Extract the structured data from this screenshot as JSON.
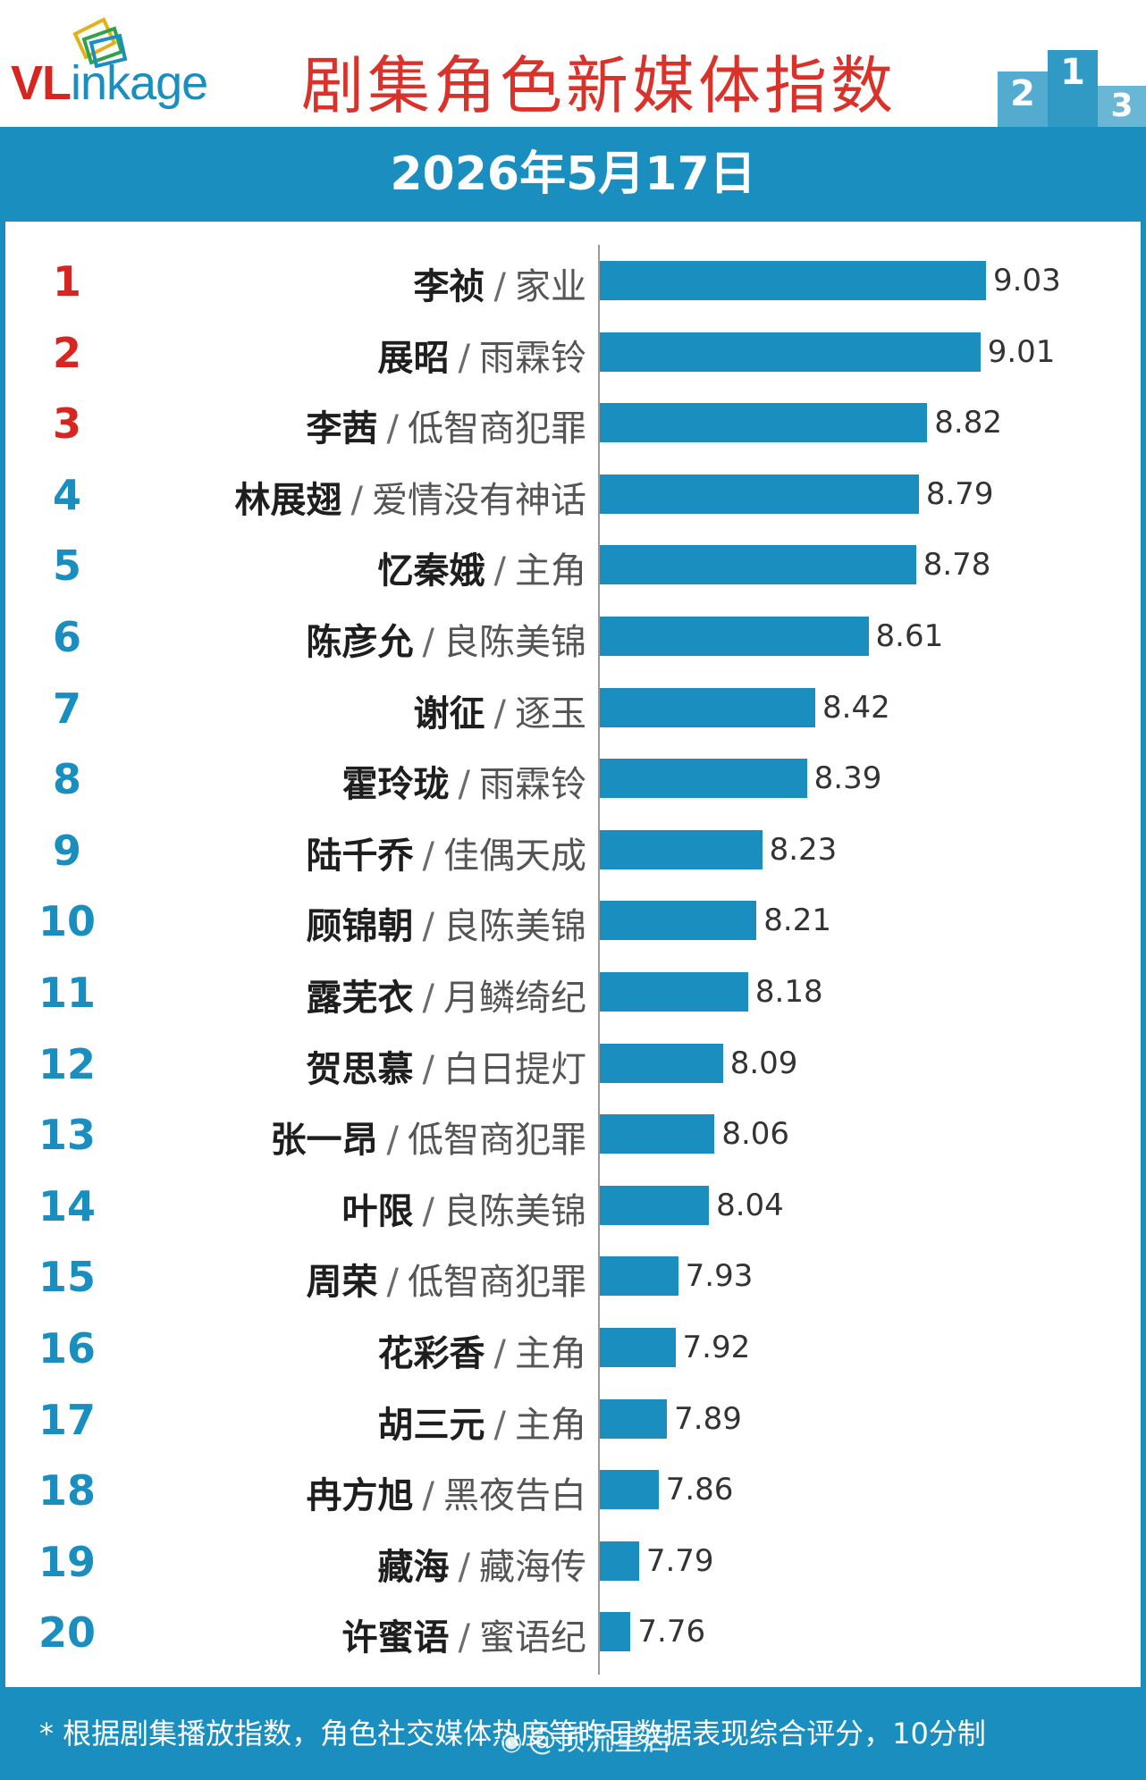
{
  "brand": {
    "logo_text_v": "VL",
    "logo_text_rest": "inkage"
  },
  "header": {
    "title": "剧集角色新媒体指数",
    "podium_icon": "podium-icon"
  },
  "date": "2026年5月17日",
  "colors": {
    "bar": "#1a8fbf",
    "rank_top3": "#d7251f",
    "rank_other": "#1a8fbf",
    "title": "#d9322a"
  },
  "chart_data": {
    "type": "bar",
    "orientation": "horizontal",
    "title": "剧集角色新媒体指数",
    "categories": [
      {
        "rank": "1",
        "name": "李祯",
        "show": "家业"
      },
      {
        "rank": "2",
        "name": "展昭",
        "show": "雨霖铃"
      },
      {
        "rank": "3",
        "name": "李茜",
        "show": "低智商犯罪"
      },
      {
        "rank": "4",
        "name": "林展翅",
        "show": "爱情没有神话"
      },
      {
        "rank": "5",
        "name": "忆秦娥",
        "show": "主角"
      },
      {
        "rank": "6",
        "name": "陈彦允",
        "show": "良陈美锦"
      },
      {
        "rank": "7",
        "name": "谢征",
        "show": "逐玉"
      },
      {
        "rank": "8",
        "name": "霍玲珑",
        "show": "雨霖铃"
      },
      {
        "rank": "9",
        "name": "陆千乔",
        "show": "佳偶天成"
      },
      {
        "rank": "10",
        "name": "顾锦朝",
        "show": "良陈美锦"
      },
      {
        "rank": "11",
        "name": "露芜衣",
        "show": "月鳞绮纪"
      },
      {
        "rank": "12",
        "name": "贺思慕",
        "show": "白日提灯"
      },
      {
        "rank": "13",
        "name": "张一昂",
        "show": "低智商犯罪"
      },
      {
        "rank": "14",
        "name": "叶限",
        "show": "良陈美锦"
      },
      {
        "rank": "15",
        "name": "周荣",
        "show": "低智商犯罪"
      },
      {
        "rank": "16",
        "name": "花彩香",
        "show": "主角"
      },
      {
        "rank": "17",
        "name": "胡三元",
        "show": "主角"
      },
      {
        "rank": "18",
        "name": "冉方旭",
        "show": "黑夜告白"
      },
      {
        "rank": "19",
        "name": "藏海",
        "show": "藏海传"
      },
      {
        "rank": "20",
        "name": "许蜜语",
        "show": "蜜语纪"
      }
    ],
    "values": [
      9.03,
      9.01,
      8.82,
      8.79,
      8.78,
      8.61,
      8.42,
      8.39,
      8.23,
      8.21,
      8.18,
      8.09,
      8.06,
      8.04,
      7.93,
      7.92,
      7.89,
      7.86,
      7.79,
      7.76
    ],
    "value_labels": [
      "9.03",
      "9.01",
      "8.82",
      "8.79",
      "8.78",
      "8.61",
      "8.42",
      "8.39",
      "8.23",
      "8.21",
      "8.18",
      "8.09",
      "8.06",
      "8.04",
      "7.93",
      "7.92",
      "7.89",
      "7.86",
      "7.79",
      "7.76"
    ],
    "xlim": [
      7.65,
      9.03
    ],
    "separator": "/",
    "grid": false,
    "legend": "none"
  },
  "footer": {
    "note": "* 根据剧集播放指数，角色社交媒体热度等昨日数据表现综合评分，10分制",
    "watermark": "@顶流星启"
  }
}
